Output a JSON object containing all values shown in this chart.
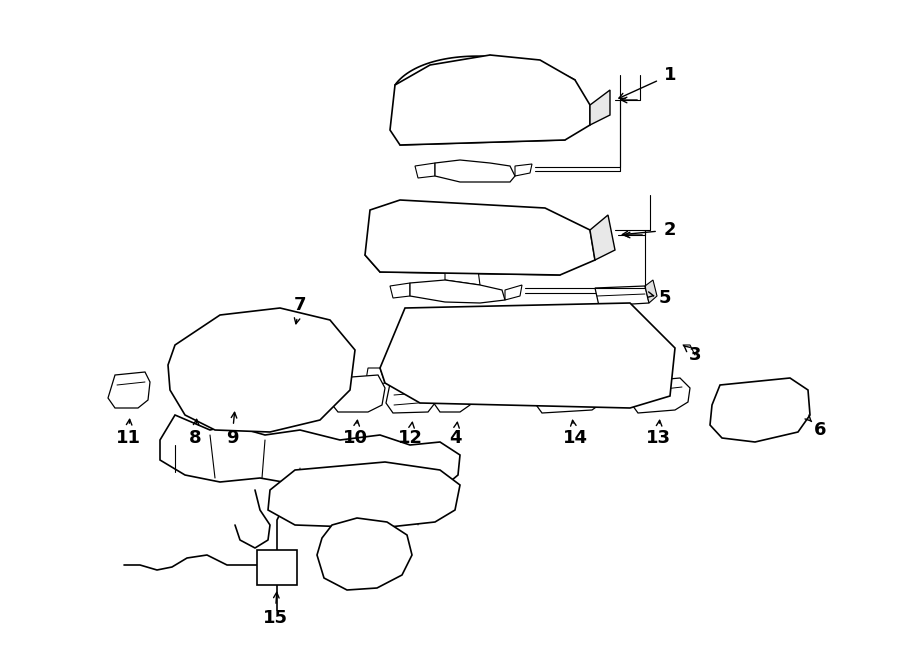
{
  "background": "#ffffff",
  "line_color": "#000000",
  "fig_width": 9.0,
  "fig_height": 6.61,
  "dpi": 100
}
